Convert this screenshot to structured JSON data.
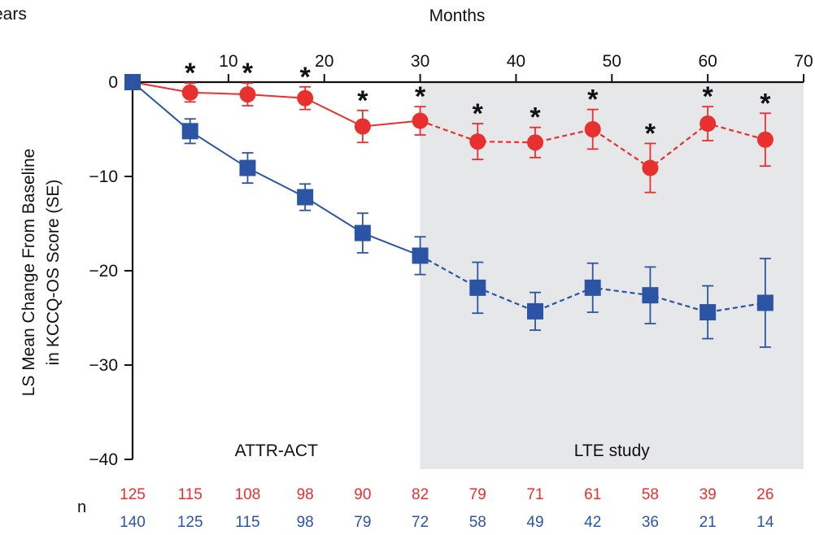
{
  "chart_data": {
    "type": "line",
    "top_axis_label_partial": "ears",
    "xlabel": "Months",
    "ylabel_line1": "LS Mean Change From Baseline",
    "ylabel_line2": "in KCCQ-OS Score (SE)",
    "xlim": [
      0,
      70
    ],
    "ylim": [
      -40,
      0
    ],
    "x_ticks": [
      10,
      20,
      30,
      40,
      50,
      60,
      70
    ],
    "x_tick_labels": [
      "10",
      "20",
      "30",
      "40",
      "50",
      "60",
      "70"
    ],
    "y_ticks": [
      0,
      -10,
      -20,
      -30,
      -40
    ],
    "y_tick_labels": [
      "0",
      "−10",
      "−20",
      "−30",
      "−40"
    ],
    "region_labels": [
      {
        "text": "ATTR-ACT",
        "x_start": 0,
        "x_end": 30,
        "shaded": false
      },
      {
        "text": "LTE study",
        "x_start": 30,
        "x_end": 70,
        "shaded": true
      }
    ],
    "shade_color": "#e6e7e9",
    "dashed_from_x": 30,
    "x": [
      0,
      6,
      12,
      18,
      24,
      30,
      36,
      42,
      48,
      54,
      60,
      66
    ],
    "series": [
      {
        "color": "#e8302f",
        "marker": "circle",
        "values": [
          0,
          -1.1,
          -1.3,
          -1.7,
          -4.7,
          -4.1,
          -6.3,
          -6.4,
          -5.0,
          -9.1,
          -4.4,
          -6.1
        ],
        "se": [
          0,
          1.0,
          1.2,
          1.2,
          1.7,
          1.5,
          1.9,
          1.6,
          2.1,
          2.6,
          1.8,
          2.8
        ],
        "n": [
          "125",
          "115",
          "108",
          "98",
          "90",
          "82",
          "79",
          "71",
          "61",
          "58",
          "39",
          "26"
        ]
      },
      {
        "color": "#2b55a4",
        "marker": "square",
        "values": [
          0,
          -5.2,
          -9.1,
          -12.2,
          -16.0,
          -18.4,
          -21.8,
          -24.3,
          -21.8,
          -22.6,
          -24.4,
          -23.4
        ],
        "se": [
          0,
          1.3,
          1.6,
          1.4,
          2.1,
          2.0,
          2.7,
          2.0,
          2.6,
          3.0,
          2.8,
          4.7
        ],
        "n": [
          "140",
          "125",
          "115",
          "98",
          "79",
          "72",
          "58",
          "49",
          "42",
          "36",
          "21",
          "14"
        ]
      }
    ],
    "significance_marker": "*",
    "significance_x": [
      6,
      12,
      18,
      24,
      30,
      36,
      42,
      48,
      54,
      60,
      66
    ],
    "n_label": "n",
    "grid": false
  }
}
